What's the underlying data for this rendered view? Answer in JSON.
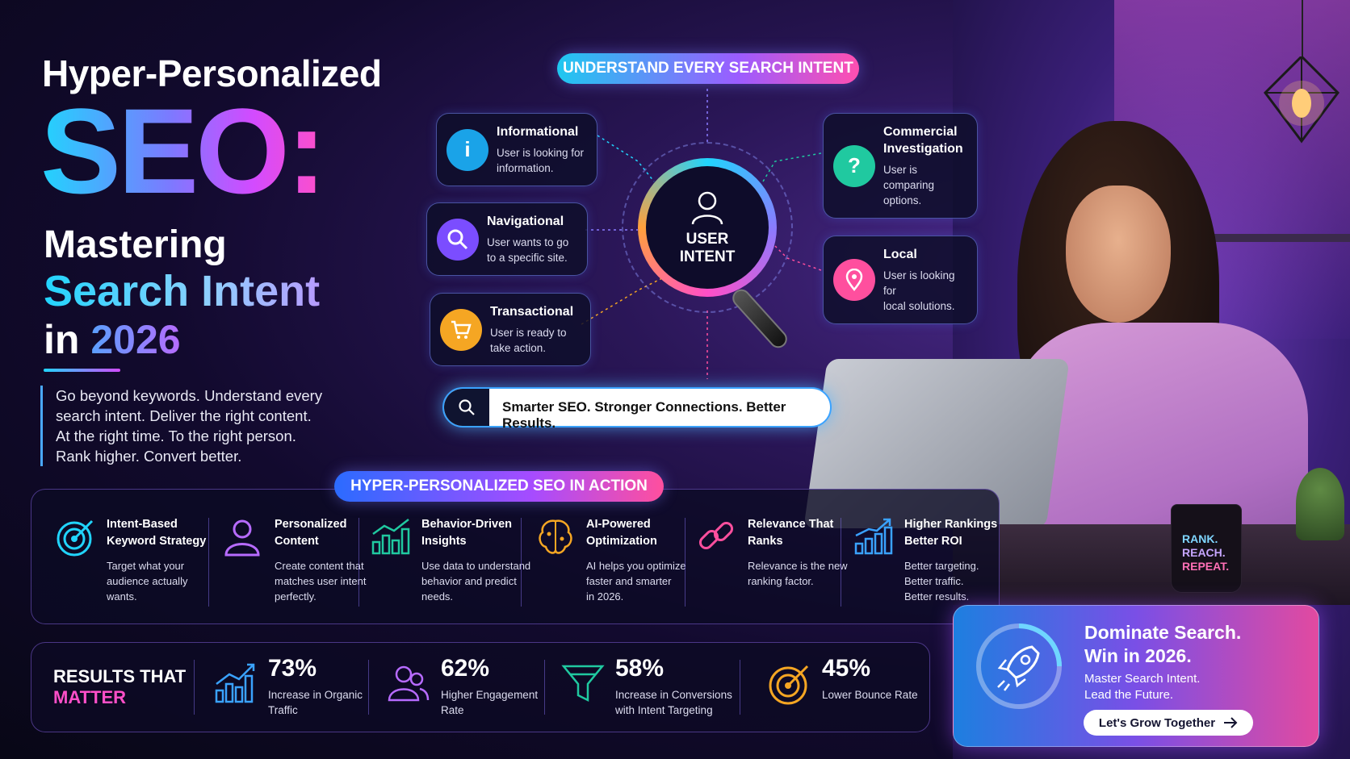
{
  "headline": {
    "top": "Hyper-Personalized",
    "seo": "SEO:",
    "mastering": "Mastering",
    "search_intent": "Search Intent",
    "in": "in",
    "year": "2026"
  },
  "tagline": [
    "Go beyond keywords. Understand every",
    "search intent. Deliver the right content.",
    "At the right time. To the right person.",
    "Rank higher. Convert better."
  ],
  "intent_header": "UNDERSTAND EVERY SEARCH INTENT",
  "center_label": [
    "USER",
    "INTENT"
  ],
  "intents": {
    "informational": {
      "title": "Informational",
      "desc": [
        "User is looking for",
        "information."
      ],
      "color": "#1aa3e8",
      "icon": "info-icon"
    },
    "navigational": {
      "title": "Navigational",
      "desc": [
        "User wants to go",
        "to a specific site."
      ],
      "color": "#7b4dff",
      "icon": "search-icon"
    },
    "transactional": {
      "title": "Transactional",
      "desc": [
        "User is ready to",
        "take action."
      ],
      "color": "#f5a623",
      "icon": "cart-icon"
    },
    "commercial": {
      "title": [
        "Commercial",
        "Investigation"
      ],
      "desc": [
        "User is comparing",
        "options."
      ],
      "color": "#20c9a0",
      "icon": "question-icon"
    },
    "local": {
      "title": "Local",
      "desc": [
        "User is looking for",
        "local solutions."
      ],
      "color": "#ff4f9e",
      "icon": "location-pin-icon"
    }
  },
  "search_bar": {
    "text": "Smarter SEO. Stronger Connections. Better Results."
  },
  "action_header": "HYPER-PERSONALIZED SEO IN ACTION",
  "actions": [
    {
      "title": [
        "Intent-Based",
        "Keyword Strategy"
      ],
      "desc": [
        "Target what your",
        "audience actually",
        "wants."
      ],
      "icon": "target-icon",
      "color": "#21d4fd"
    },
    {
      "title": [
        "Personalized",
        "Content"
      ],
      "desc": [
        "Create content that",
        "matches user intent",
        "perfectly."
      ],
      "icon": "user-icon",
      "color": "#b76bff"
    },
    {
      "title": [
        "Behavior-Driven",
        "Insights"
      ],
      "desc": [
        "Use data to understand",
        "behavior and predict",
        "needs."
      ],
      "icon": "bar-chart-icon",
      "color": "#20c9a0"
    },
    {
      "title": [
        "AI-Powered",
        "Optimization"
      ],
      "desc": [
        "AI helps you optimize",
        "faster and smarter",
        "in 2026."
      ],
      "icon": "brain-icon",
      "color": "#f5a623"
    },
    {
      "title": [
        "Relevance That",
        "Ranks"
      ],
      "desc": [
        "Relevance is the new",
        "ranking factor."
      ],
      "icon": "link-icon",
      "color": "#ff4f9e"
    },
    {
      "title": [
        "Higher Rankings",
        "Better ROI"
      ],
      "desc": [
        "Better targeting.",
        "Better traffic.",
        "Better results."
      ],
      "icon": "growth-chart-icon",
      "color": "#3aa2ff"
    }
  ],
  "results": {
    "title_1": "RESULTS THAT",
    "title_2": "MATTER",
    "stats": [
      {
        "value": "73%",
        "label": [
          "Increase in Organic",
          "Traffic"
        ],
        "icon": "growth-chart-icon",
        "color": "#3aa2ff"
      },
      {
        "value": "62%",
        "label": [
          "Higher Engagement",
          "Rate"
        ],
        "icon": "users-icon",
        "color": "#b76bff"
      },
      {
        "value": "58%",
        "label": [
          "Increase in Conversions",
          "with Intent Targeting"
        ],
        "icon": "funnel-icon",
        "color": "#20c9a0"
      },
      {
        "value": "45%",
        "label": [
          "Lower Bounce Rate"
        ],
        "icon": "target-icon",
        "color": "#f5a623"
      }
    ]
  },
  "cta": {
    "heading": [
      "Dominate Search.",
      "Win in 2026."
    ],
    "sub": [
      "Master Search Intent.",
      "Lead the Future."
    ],
    "button": "Let's Grow Together",
    "icon": "rocket-icon"
  },
  "mug": [
    "RANK.",
    "REACH.",
    "REPEAT."
  ]
}
